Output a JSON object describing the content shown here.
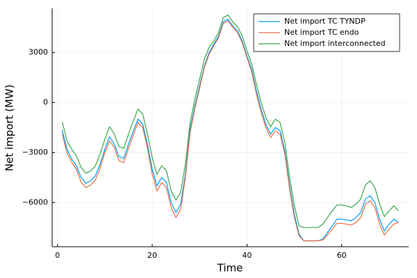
{
  "chart_data": {
    "type": "line",
    "xlabel": "Time",
    "ylabel": "Net import (MW)",
    "x": [
      1,
      2,
      3,
      4,
      5,
      6,
      7,
      8,
      9,
      10,
      11,
      12,
      13,
      14,
      15,
      16,
      17,
      18,
      19,
      20,
      21,
      22,
      23,
      24,
      25,
      26,
      27,
      28,
      29,
      30,
      31,
      32,
      33,
      34,
      35,
      36,
      37,
      38,
      39,
      40,
      41,
      42,
      43,
      44,
      45,
      46,
      47,
      48,
      49,
      50,
      51,
      52,
      53,
      54,
      55,
      56,
      57,
      58,
      59,
      60,
      61,
      62,
      63,
      64,
      65,
      66,
      67,
      68,
      69,
      70,
      71,
      72
    ],
    "series": [
      {
        "name": "Net import TC TYNDP",
        "color": "#009af9",
        "values": [
          -1650,
          -2800,
          -3400,
          -3800,
          -4500,
          -4850,
          -4700,
          -4400,
          -3700,
          -2800,
          -2050,
          -2500,
          -3250,
          -3350,
          -2500,
          -1700,
          -1000,
          -1300,
          -2500,
          -4000,
          -5000,
          -4500,
          -4800,
          -6000,
          -6600,
          -6100,
          -4300,
          -1600,
          -200,
          1000,
          2200,
          3000,
          3500,
          4000,
          4850,
          5000,
          4600,
          4300,
          3700,
          2800,
          2000,
          700,
          -400,
          -1300,
          -1900,
          -1500,
          -1700,
          -2900,
          -5000,
          -6700,
          -7900,
          -8300,
          -8300,
          -8300,
          -8300,
          -8200,
          -7800,
          -7400,
          -7000,
          -7000,
          -7050,
          -7100,
          -6900,
          -6600,
          -5800,
          -5600,
          -6000,
          -7000,
          -7700,
          -7300,
          -7000,
          -7200
        ]
      },
      {
        "name": "Net import TC endo",
        "color": "#e26f46",
        "values": [
          -1900,
          -3000,
          -3600,
          -4000,
          -4800,
          -5100,
          -4950,
          -4650,
          -3950,
          -3000,
          -2300,
          -2700,
          -3500,
          -3600,
          -2750,
          -1950,
          -1200,
          -1500,
          -2750,
          -4300,
          -5300,
          -4800,
          -5100,
          -6300,
          -6900,
          -6400,
          -4500,
          -1800,
          -350,
          850,
          2100,
          2900,
          3400,
          3900,
          4750,
          4900,
          4500,
          4200,
          3600,
          2700,
          1850,
          500,
          -600,
          -1500,
          -2100,
          -1700,
          -1900,
          -3100,
          -5200,
          -6900,
          -8000,
          -8300,
          -8300,
          -8300,
          -8300,
          -8250,
          -7950,
          -7600,
          -7250,
          -7250,
          -7300,
          -7350,
          -7200,
          -6900,
          -6100,
          -5900,
          -6300,
          -7300,
          -7950,
          -7600,
          -7300,
          -7200
        ]
      },
      {
        "name": "Net import interconnected",
        "color": "#3da44d",
        "values": [
          -1150,
          -2300,
          -2800,
          -3200,
          -3900,
          -4250,
          -4100,
          -3800,
          -3100,
          -2200,
          -1450,
          -1900,
          -2650,
          -2750,
          -1900,
          -1100,
          -400,
          -700,
          -1900,
          -3300,
          -4300,
          -3800,
          -4100,
          -5300,
          -5850,
          -5400,
          -3700,
          -1200,
          200,
          1400,
          2600,
          3300,
          3700,
          4200,
          5100,
          5250,
          4850,
          4550,
          4000,
          3100,
          2300,
          1100,
          0,
          -900,
          -1450,
          -1000,
          -1200,
          -2400,
          -4500,
          -6200,
          -7400,
          -7500,
          -7500,
          -7500,
          -7500,
          -7300,
          -6900,
          -6500,
          -6150,
          -6150,
          -6200,
          -6300,
          -6100,
          -5800,
          -4950,
          -4700,
          -5100,
          -6100,
          -6850,
          -6500,
          -6200,
          -6500
        ]
      }
    ],
    "xlim": [
      -1.13,
      74.13
    ],
    "xticks": [
      0,
      20,
      40,
      60
    ],
    "ylim": [
      -8655,
      5655
    ],
    "yticks": [
      {
        "value": -6000,
        "label": "−6000"
      },
      {
        "value": -3000,
        "label": "−3000"
      },
      0,
      3000
    ],
    "grid": true,
    "legend": "top-right"
  }
}
